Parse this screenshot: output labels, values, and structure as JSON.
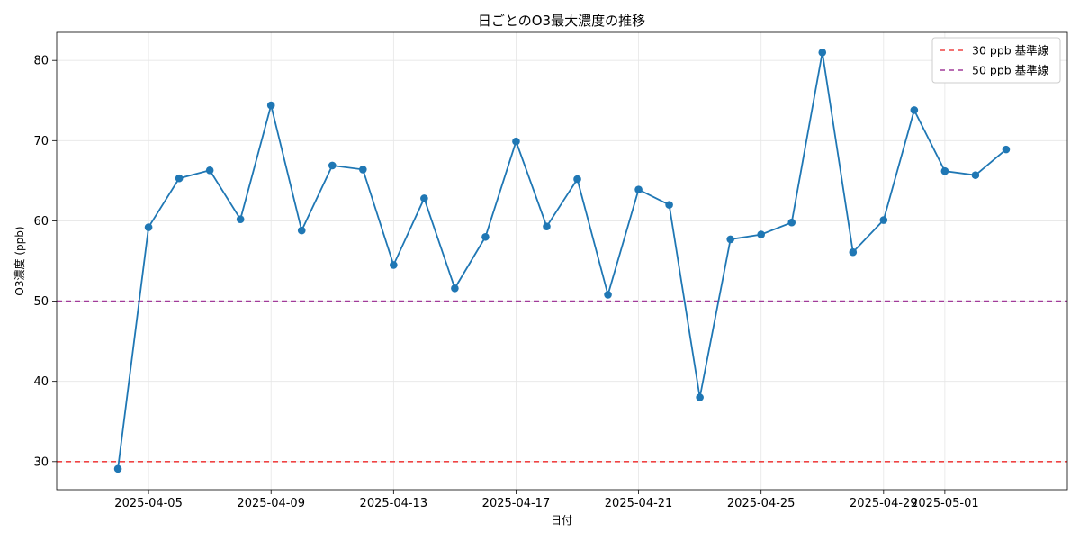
{
  "chart_data": {
    "type": "line",
    "title": "日ごとのO3最大濃度の推移",
    "xlabel": "日付",
    "ylabel": "O3濃度 (ppb)",
    "x_ticks": [
      "2025-04-05",
      "2025-04-09",
      "2025-04-13",
      "2025-04-17",
      "2025-04-21",
      "2025-04-25",
      "2025-04-29",
      "2025-05-01"
    ],
    "y_ticks": [
      30,
      40,
      50,
      60,
      70,
      80
    ],
    "xlim": [
      "2025-04-02",
      "2025-05-05"
    ],
    "ylim": [
      26.5,
      83.5
    ],
    "grid": true,
    "legend_position": "top-right",
    "series": [
      {
        "type": "line",
        "color": "#1f77b4",
        "x": [
          "2025-04-04",
          "2025-04-05",
          "2025-04-06",
          "2025-04-07",
          "2025-04-08",
          "2025-04-09",
          "2025-04-10",
          "2025-04-11",
          "2025-04-12",
          "2025-04-13",
          "2025-04-14",
          "2025-04-15",
          "2025-04-16",
          "2025-04-17",
          "2025-04-18",
          "2025-04-19",
          "2025-04-20",
          "2025-04-21",
          "2025-04-22",
          "2025-04-23",
          "2025-04-24",
          "2025-04-25",
          "2025-04-26",
          "2025-04-27",
          "2025-04-28",
          "2025-04-29",
          "2025-04-30",
          "2025-05-01",
          "2025-05-02",
          "2025-05-03"
        ],
        "values": [
          29.1,
          59.2,
          65.3,
          66.3,
          60.2,
          74.4,
          58.8,
          66.9,
          66.4,
          54.5,
          62.8,
          51.6,
          58.0,
          69.9,
          59.3,
          65.2,
          50.8,
          63.9,
          62.0,
          38.0,
          57.7,
          58.3,
          59.8,
          81.0,
          56.1,
          60.1,
          73.8,
          66.2,
          65.7,
          68.9
        ]
      }
    ],
    "reference_lines": [
      {
        "name": "30 ppb 基準線",
        "value": 30,
        "color": "#ef4444",
        "style": "dashed"
      },
      {
        "name": "50 ppb 基準線",
        "value": 50,
        "color": "#a23b9a",
        "style": "dashed"
      }
    ]
  }
}
